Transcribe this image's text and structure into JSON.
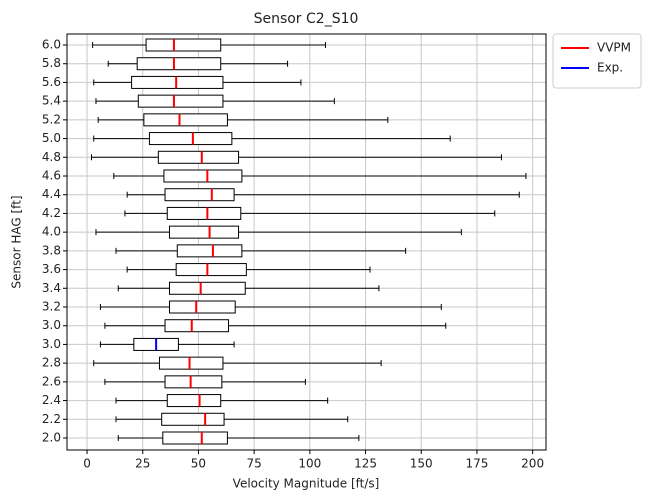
{
  "chart_data": {
    "type": "boxplot",
    "title": "Sensor C2_S10",
    "xlabel": "Velocity Magnitude [ft/s]",
    "ylabel": "Sensor HAG [ft]",
    "orientation": "horizontal",
    "categories": [
      "2.0",
      "2.2",
      "2.4",
      "2.6",
      "2.8",
      "3.0",
      "3.0",
      "3.2",
      "3.4",
      "3.6",
      "3.8",
      "4.0",
      "4.2",
      "4.4",
      "4.6",
      "4.8",
      "5.0",
      "5.2",
      "5.4",
      "5.6",
      "5.8",
      "6.0"
    ],
    "xlim": [
      -9,
      206
    ],
    "xticks": [
      0,
      25,
      50,
      75,
      100,
      125,
      150,
      175,
      200
    ],
    "grid": true,
    "legend": "outside-upper-right",
    "series": [
      {
        "name": "VVPM",
        "color": "#ff0000",
        "values": [
          {
            "min": 14,
            "q1": 34,
            "median": 51.5,
            "q3": 63,
            "max": 122
          },
          {
            "min": 13,
            "q1": 33.5,
            "median": 53,
            "q3": 61.5,
            "max": 117
          },
          {
            "min": 13,
            "q1": 36,
            "median": 50.5,
            "q3": 60,
            "max": 108
          },
          {
            "min": 8,
            "q1": 35,
            "median": 46.5,
            "q3": 60.5,
            "max": 98
          },
          {
            "min": 3,
            "q1": 32.5,
            "median": 46,
            "q3": 61,
            "max": 132
          },
          null,
          {
            "min": 8,
            "q1": 35,
            "median": 47,
            "q3": 63.5,
            "max": 161
          },
          {
            "min": 6,
            "q1": 37,
            "median": 49,
            "q3": 66.5,
            "max": 159
          },
          {
            "min": 14,
            "q1": 37,
            "median": 51,
            "q3": 71,
            "max": 131
          },
          {
            "min": 18,
            "q1": 40,
            "median": 54,
            "q3": 71.5,
            "max": 127
          },
          {
            "min": 13,
            "q1": 40.5,
            "median": 56.5,
            "q3": 69.5,
            "max": 143
          },
          {
            "min": 4,
            "q1": 37,
            "median": 55,
            "q3": 68,
            "max": 168
          },
          {
            "min": 17,
            "q1": 36,
            "median": 54,
            "q3": 69,
            "max": 183
          },
          {
            "min": 18,
            "q1": 35,
            "median": 56,
            "q3": 66,
            "max": 194
          },
          {
            "min": 12,
            "q1": 34.5,
            "median": 54,
            "q3": 69.5,
            "max": 197
          },
          {
            "min": 2,
            "q1": 32,
            "median": 51.5,
            "q3": 68,
            "max": 186
          },
          {
            "min": 3,
            "q1": 28,
            "median": 47.5,
            "q3": 65,
            "max": 163
          },
          {
            "min": 5,
            "q1": 25.5,
            "median": 41.5,
            "q3": 63,
            "max": 135
          },
          {
            "min": 4,
            "q1": 23,
            "median": 39,
            "q3": 61,
            "max": 111
          },
          {
            "min": 3,
            "q1": 20,
            "median": 40,
            "q3": 61,
            "max": 96
          },
          {
            "min": 9.5,
            "q1": 22.5,
            "median": 39,
            "q3": 60,
            "max": 90
          },
          {
            "min": 2.5,
            "q1": 26.5,
            "median": 39,
            "q3": 60,
            "max": 107
          }
        ]
      },
      {
        "name": "Exp.",
        "color": "#0000ff",
        "values": [
          null,
          null,
          null,
          null,
          null,
          {
            "min": 6,
            "q1": 21,
            "median": 31,
            "q3": 41,
            "max": 66
          },
          null,
          null,
          null,
          null,
          null,
          null,
          null,
          null,
          null,
          null,
          null,
          null,
          null,
          null,
          null,
          null
        ]
      }
    ]
  }
}
